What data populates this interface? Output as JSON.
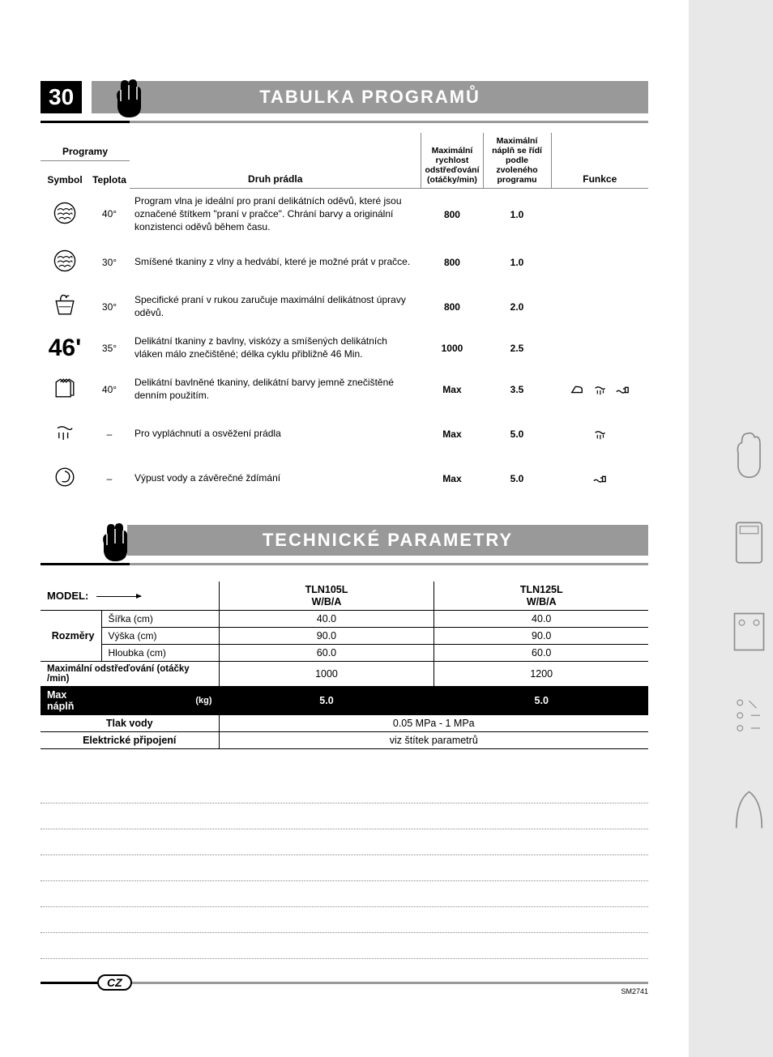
{
  "page_number": "30",
  "section1_title": "TABULKA PROGRAMŮ",
  "section2_title": "TECHNICKÉ PARAMETRY",
  "lang_badge": "CZ",
  "doc_code": "SM2741",
  "prog_headers": {
    "programs": "Programy",
    "symbol": "Symbol",
    "temp": "Teplota",
    "fabric": "Druh prádla",
    "spin": "Maximální rychlost odstřeďování (otáčky/min)",
    "load": "Maximální náplň se řídí podle zvoleného programu",
    "func": "Funkce"
  },
  "prog_rows": [
    {
      "sym": "wool",
      "temp": "40°",
      "desc": "Program vlna je ideální pro praní delikátních oděvů, které jsou označené štítkem \"praní v pračce\". Chrání barvy a originální konzistenci oděvů během času.",
      "spin": "800",
      "load": "1.0",
      "funcs": []
    },
    {
      "sym": "wool",
      "temp": "30°",
      "desc": "Smíšené tkaniny z vlny a hedvábí, které je možné prát v pračce.",
      "spin": "800",
      "load": "1.0",
      "funcs": []
    },
    {
      "sym": "hand",
      "temp": "30°",
      "desc": "Specifické praní v rukou zaručuje maximální delikátnost úpravy oděvů.",
      "spin": "800",
      "load": "2.0",
      "funcs": []
    },
    {
      "sym": "num46",
      "temp": "35°",
      "desc": "Delikátní tkaniny z bavlny, viskózy a smíšených delikátních vláken málo znečištěné; délka cyklu přibližně 46 Min.",
      "spin": "1000",
      "load": "2.5",
      "funcs": []
    },
    {
      "sym": "shirts",
      "temp": "40°",
      "desc": "Delikátní bavlněné tkaniny, delikátní barvy jemně znečištěné denním použitím.",
      "spin": "Max",
      "load": "3.5",
      "funcs": [
        "iron",
        "rinse",
        "drain"
      ]
    },
    {
      "sym": "rinse",
      "temp": "–",
      "desc": "Pro vypláchnutí a osvěžení prádla",
      "spin": "Max",
      "load": "5.0",
      "funcs": [
        "rinse"
      ]
    },
    {
      "sym": "spin",
      "temp": "–",
      "desc": "Výpust vody a závěrečné ždímání",
      "spin": "Max",
      "load": "5.0",
      "funcs": [
        "drain"
      ]
    }
  ],
  "tech": {
    "model_label": "MODEL:",
    "models": [
      "TLN105L\nW/B/A",
      "TLN125L\nW/B/A"
    ],
    "dims_label": "Rozměry",
    "rows": [
      {
        "sub": "Šířka (cm)",
        "v": [
          "40.0",
          "40.0"
        ]
      },
      {
        "sub": "Výška (cm)",
        "v": [
          "90.0",
          "90.0"
        ]
      },
      {
        "sub": "Hloubka (cm)",
        "v": [
          "60.0",
          "60.0"
        ]
      }
    ],
    "spin_label": "Maximální odstřeďování (otáčky /min)",
    "spin_v": [
      "1000",
      "1200"
    ],
    "maxload_label": "Max náplň",
    "maxload_unit": "(kg)",
    "maxload_v": [
      "5.0",
      "5.0"
    ],
    "pressure_label": "Tlak vody",
    "pressure_v": "0.05 MPa - 1 MPa",
    "elec_label": "Elektrické připojení",
    "elec_v": "viz štítek parametrů"
  },
  "dotted_line_count": 7,
  "colors": {
    "header_gray": "#999999",
    "black": "#000000",
    "side_gray": "#e8e8e8",
    "dotted": "#888888"
  }
}
